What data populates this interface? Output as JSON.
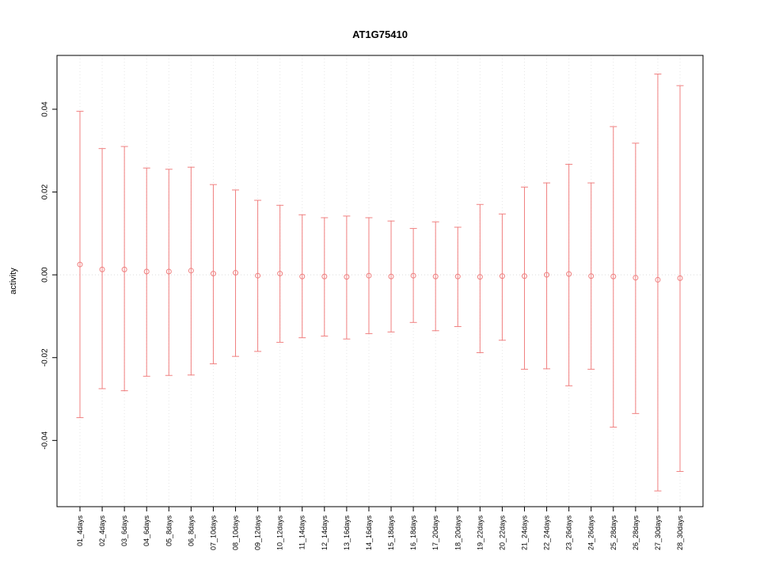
{
  "chart_data": {
    "type": "errorbar",
    "title": "AT1G75410",
    "ylabel": "activity",
    "xlabel": "",
    "ylim": [
      -0.056,
      0.053
    ],
    "yticks": [
      -0.04,
      -0.02,
      0.0,
      0.02,
      0.04
    ],
    "ytick_labels": [
      "-0.04",
      "-0.02",
      "0.00",
      "0.02",
      "0.04"
    ],
    "grid": "vertical-dotted",
    "legend": "none",
    "categories": [
      "01_4days",
      "02_4days",
      "03_6days",
      "04_6days",
      "05_8days",
      "06_8days",
      "07_10days",
      "08_10days",
      "09_12days",
      "10_12days",
      "11_14days",
      "12_14days",
      "13_16days",
      "14_16days",
      "15_18days",
      "16_18days",
      "17_20days",
      "18_20days",
      "19_22days",
      "20_22days",
      "21_24days",
      "22_24days",
      "23_26days",
      "24_26days",
      "25_28days",
      "26_28days",
      "27_30days",
      "28_30days"
    ],
    "series": [
      {
        "name": "activity",
        "marker": "open-circle",
        "means": [
          0.0025,
          0.0013,
          0.0013,
          0.0008,
          0.0008,
          0.001,
          0.0003,
          0.0005,
          -0.0002,
          0.0003,
          -0.0004,
          -0.0004,
          -0.0005,
          -0.0002,
          -0.0004,
          -0.0002,
          -0.0004,
          -0.0004,
          -0.0005,
          -0.0003,
          -0.0003,
          0.0,
          0.0002,
          -0.0003,
          -0.0004,
          -0.0007,
          -0.0012,
          -0.0008
        ],
        "upper": [
          0.0395,
          0.0305,
          0.031,
          0.0258,
          0.0255,
          0.026,
          0.0218,
          0.0205,
          0.018,
          0.0168,
          0.0145,
          0.0138,
          0.0142,
          0.0138,
          0.013,
          0.0112,
          0.0128,
          0.0115,
          0.017,
          0.0147,
          0.0212,
          0.0222,
          0.0267,
          0.0222,
          0.0358,
          0.0318,
          0.0485,
          0.0457
        ],
        "lower": [
          -0.0345,
          -0.0275,
          -0.028,
          -0.0245,
          -0.0243,
          -0.0242,
          -0.0215,
          -0.0197,
          -0.0185,
          -0.0163,
          -0.0152,
          -0.0148,
          -0.0155,
          -0.0142,
          -0.0138,
          -0.0115,
          -0.0135,
          -0.0125,
          -0.0188,
          -0.0158,
          -0.0228,
          -0.0227,
          -0.0268,
          -0.0228,
          -0.0368,
          -0.0335,
          -0.0522,
          -0.0475
        ]
      }
    ],
    "colors": {
      "series": "#F08080",
      "grid": "#E6E6E6",
      "zero_line": "#DCDCDC",
      "axis": "#000000",
      "text": "#000000"
    }
  }
}
